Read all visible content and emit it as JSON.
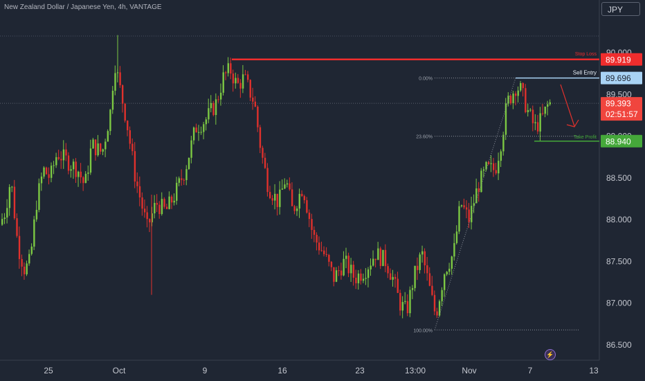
{
  "header": {
    "title": "New Zealand Dollar / Japanese Yen, 4h, VANTAGE",
    "currency": "JPY"
  },
  "colors": {
    "background": "#1f2633",
    "up": "#7cc843",
    "down": "#e0312c",
    "stop": "#ef2d2d",
    "entry": "#a9d3f5",
    "take_profit": "#45a83a",
    "current": "#f0453e"
  },
  "chart_data": {
    "type": "candlestick",
    "title": "New Zealand Dollar / Japanese Yen, 4h, VANTAGE",
    "xlabel": "",
    "ylabel": "",
    "ylim": [
      86.37,
      90.42
    ],
    "y_ticks": [
      86.5,
      87.0,
      87.5,
      88.0,
      88.5,
      89.0,
      89.5,
      90.0
    ],
    "y_tick_labels": [
      "86.500",
      "87.000",
      "87.500",
      "88.000",
      "88.500",
      "89.000",
      "89.500",
      "90.000"
    ],
    "x_tick_labels": [
      "25",
      "Oct",
      "9",
      "16",
      "23",
      "13:00",
      "Nov",
      "7",
      "13"
    ],
    "grid": false,
    "price_path": [
      [
        0,
        87.9
      ],
      [
        10,
        88.1
      ],
      [
        18,
        88.5
      ],
      [
        28,
        87.7
      ],
      [
        38,
        87.4
      ],
      [
        46,
        87.5
      ],
      [
        55,
        88.2
      ],
      [
        65,
        88.6
      ],
      [
        75,
        88.5
      ],
      [
        85,
        88.8
      ],
      [
        100,
        88.7
      ],
      [
        115,
        88.6
      ],
      [
        125,
        88.4
      ],
      [
        135,
        88.9
      ],
      [
        150,
        88.8
      ],
      [
        162,
        89.3
      ],
      [
        168,
        89.9
      ],
      [
        175,
        89.6
      ],
      [
        185,
        89.2
      ],
      [
        198,
        88.5
      ],
      [
        215,
        87.9
      ],
      [
        228,
        88.2
      ],
      [
        242,
        88.1
      ],
      [
        255,
        88.3
      ],
      [
        270,
        88.6
      ],
      [
        285,
        89.1
      ],
      [
        300,
        89.2
      ],
      [
        315,
        89.4
      ],
      [
        325,
        89.7
      ],
      [
        335,
        89.8
      ],
      [
        345,
        89.6
      ],
      [
        355,
        89.7
      ],
      [
        370,
        89.4
      ],
      [
        380,
        88.8
      ],
      [
        390,
        88.4
      ],
      [
        405,
        88.2
      ],
      [
        415,
        88.5
      ],
      [
        425,
        88.1
      ],
      [
        440,
        88.4
      ],
      [
        455,
        87.8
      ],
      [
        470,
        87.6
      ],
      [
        485,
        87.3
      ],
      [
        500,
        87.5
      ],
      [
        515,
        87.3
      ],
      [
        530,
        87.4
      ],
      [
        545,
        87.6
      ],
      [
        560,
        87.5
      ],
      [
        570,
        87.3
      ],
      [
        580,
        87.0
      ],
      [
        590,
        86.9
      ],
      [
        600,
        87.3
      ],
      [
        612,
        87.6
      ],
      [
        625,
        87.1
      ],
      [
        632,
        86.85
      ],
      [
        645,
        87.4
      ],
      [
        658,
        87.6
      ],
      [
        668,
        88.2
      ],
      [
        680,
        88.0
      ],
      [
        693,
        88.4
      ],
      [
        705,
        88.6
      ],
      [
        718,
        88.6
      ],
      [
        728,
        89.0
      ],
      [
        735,
        89.4
      ],
      [
        742,
        89.5
      ],
      [
        748,
        89.6
      ],
      [
        755,
        89.55
      ],
      [
        765,
        89.3
      ],
      [
        775,
        89.1
      ],
      [
        785,
        89.2
      ],
      [
        795,
        89.39
      ]
    ],
    "levels": [
      {
        "label": "Stop Loss",
        "value": 89.919,
        "tag": "89.919"
      },
      {
        "label": "Sell Entry",
        "value": 89.696,
        "tag": "89.696"
      },
      {
        "label": "Take Profit",
        "value": 88.94,
        "tag": "88.940"
      }
    ],
    "fibonacci": [
      {
        "label": "0.00%",
        "value": 89.696
      },
      {
        "label": "23.60%",
        "value": 89.0
      },
      {
        "label": "100.00%",
        "value": 86.68
      }
    ],
    "current_price": {
      "value": 89.393,
      "label": "89.393",
      "countdown": "02:51:57"
    }
  }
}
